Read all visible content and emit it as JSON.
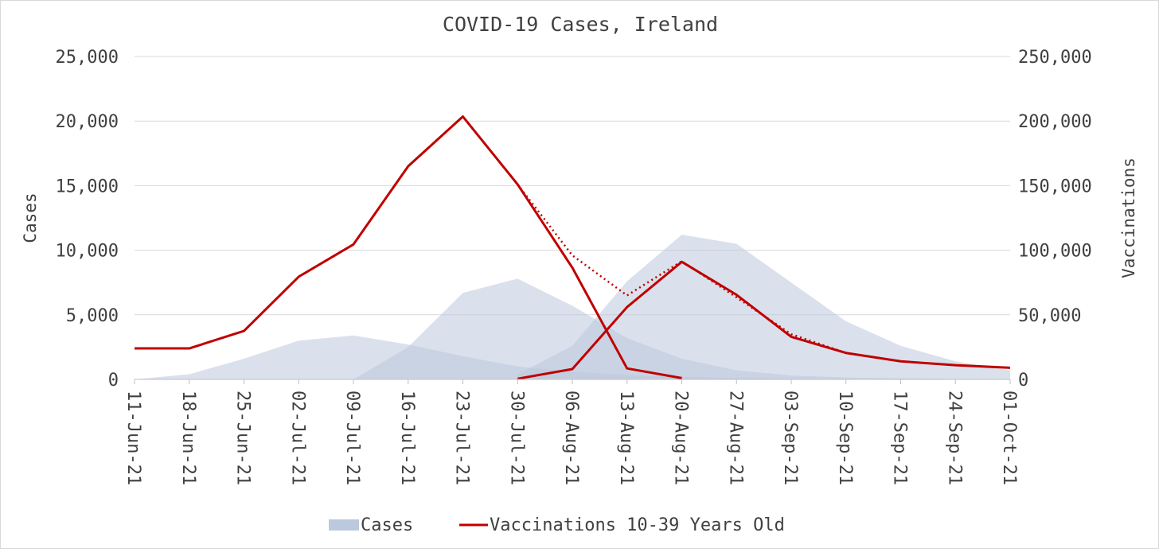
{
  "chart_data": {
    "type": "area",
    "title": "COVID-19 Cases, Ireland",
    "ylabel": "Cases",
    "y2label": "Vaccinations",
    "categories": [
      "11-Jun-21",
      "18-Jun-21",
      "25-Jun-21",
      "02-Jul-21",
      "09-Jul-21",
      "16-Jul-21",
      "23-Jul-21",
      "30-Jul-21",
      "06-Aug-21",
      "13-Aug-21",
      "20-Aug-21",
      "27-Aug-21",
      "03-Sep-21",
      "10-Sep-21",
      "17-Sep-21",
      "24-Sep-21",
      "01-Oct-21"
    ],
    "ylim": [
      0,
      25000
    ],
    "y2lim": [
      0,
      250000
    ],
    "yticks": [
      "0",
      "5,000",
      "10,000",
      "15,000",
      "20,000",
      "25,000"
    ],
    "y2ticks": [
      "0",
      "50,000",
      "100,000",
      "150,000",
      "200,000",
      "250,000"
    ],
    "grid": true,
    "legend_position": "bottom",
    "legend": [
      "Cases",
      "Vaccinations 10-39 Years Old"
    ],
    "colors": {
      "cases_fill": "#bcc8dd",
      "vaccinations_line": "#c00000",
      "grid": "#d9d9d9",
      "text": "#404040"
    },
    "area_series": [
      {
        "axis": "left",
        "start_index": 0,
        "values": [
          0,
          400,
          1600,
          3000,
          3400,
          2700,
          1800,
          1000,
          600,
          350,
          200,
          100,
          50,
          20,
          10,
          5,
          0
        ]
      },
      {
        "axis": "left",
        "start_index": 4,
        "values": [
          0,
          2500,
          6700,
          7800,
          5700,
          3200,
          1600,
          700,
          300,
          150,
          80,
          40,
          20
        ]
      },
      {
        "axis": "left",
        "start_index": 7,
        "values": [
          400,
          2600,
          7600,
          11200,
          10500,
          7500,
          4500,
          2600,
          1400,
          700
        ]
      }
    ],
    "line_series": [
      {
        "axis": "right",
        "style": "solid",
        "start_index": 0,
        "values": [
          24000,
          24000,
          37500,
          79500,
          104500,
          165000,
          203500,
          151000,
          86500,
          8500,
          1000
        ]
      },
      {
        "axis": "right",
        "style": "dotted",
        "start_index": 7,
        "values": [
          151000,
          96000,
          65000,
          91500,
          63500,
          35000,
          20500,
          14000,
          11000,
          9000
        ]
      },
      {
        "axis": "right",
        "style": "solid",
        "start_index": 7,
        "values": [
          500,
          8000,
          56000,
          91000,
          65500,
          33000,
          20500,
          14000,
          11000,
          9000
        ]
      }
    ]
  }
}
